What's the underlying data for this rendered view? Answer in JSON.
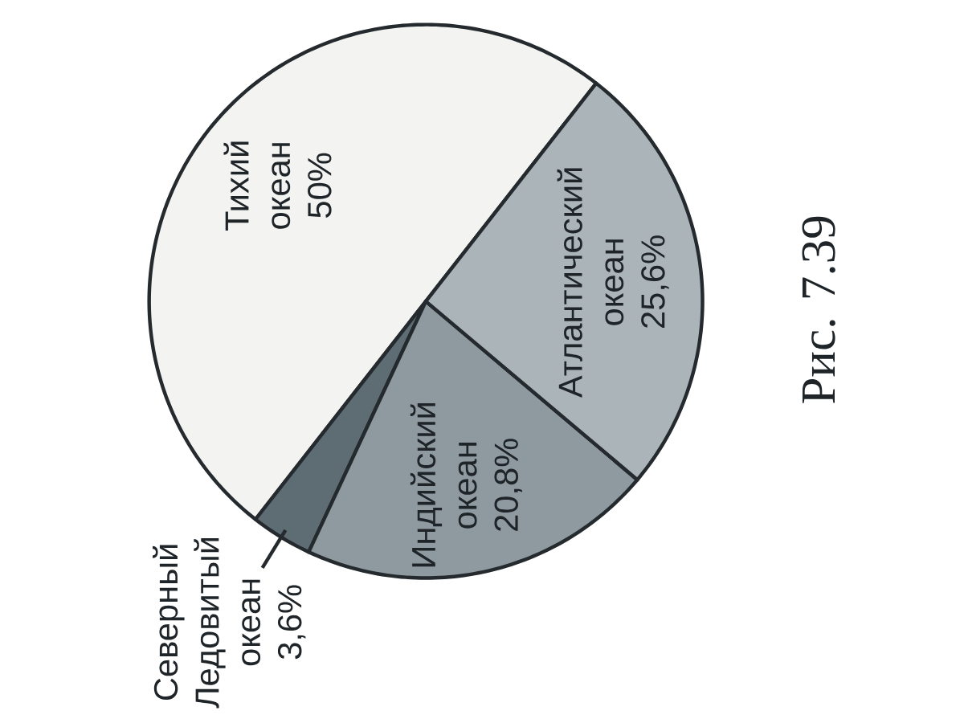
{
  "chart_data": {
    "type": "pie",
    "categories": [
      "Тихий океан",
      "Северный Ледовитый океан",
      "Индийский океан",
      "Атлантический океан"
    ],
    "values": [
      50,
      3.6,
      20.8,
      25.6
    ],
    "value_labels": [
      "50%",
      "3,6%",
      "20,8%",
      "25,6%"
    ],
    "colors": [
      "#f3f3f1",
      "#5e6c74",
      "#8e9aa0",
      "#aab4b9"
    ],
    "annotations": [
      "Рис. 7.39"
    ]
  }
}
